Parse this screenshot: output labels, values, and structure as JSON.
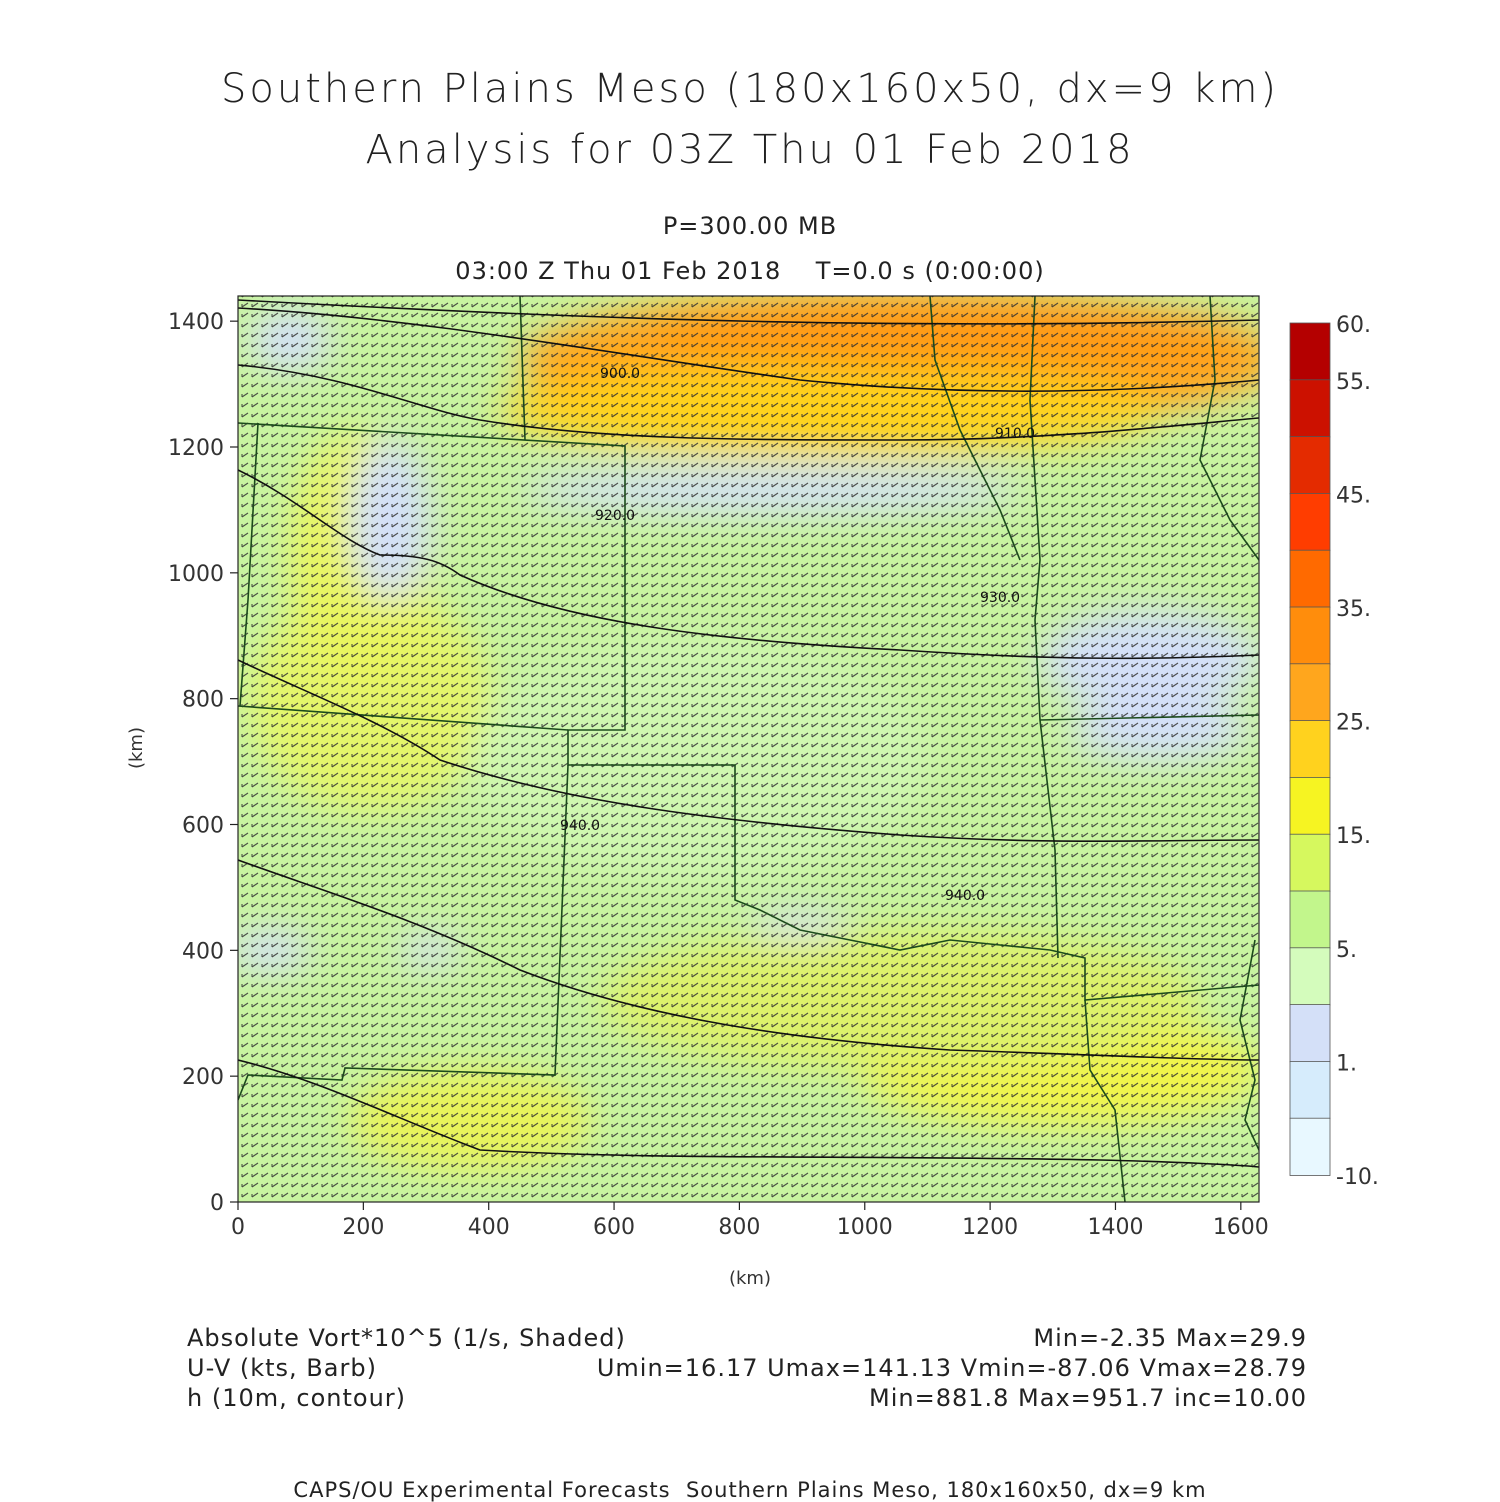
{
  "header": {
    "title": "Southern Plains Meso (180x160x50, dx=9 km)",
    "subtitle": "Analysis for 03Z Thu 01 Feb 2018",
    "level": "P=300.00 MB",
    "time": "03:00 Z Thu 01 Feb 2018    T=0.0 s (0:00:00)"
  },
  "axes": {
    "x_label": "(km)",
    "y_label": "(km)",
    "x_ticks": [
      "0",
      "200",
      "400",
      "600",
      "800",
      "1000",
      "1200",
      "1400",
      "1600"
    ],
    "y_ticks": [
      "0",
      "200",
      "400",
      "600",
      "800",
      "1000",
      "1200",
      "1400"
    ],
    "x_range_km": [
      0,
      1629
    ],
    "y_range_km": [
      0,
      1440
    ]
  },
  "colorbar": {
    "labels": [
      "60.",
      "55.",
      "45.",
      "35.",
      "25.",
      "15.",
      "5.",
      "1.",
      "-10."
    ],
    "colors": [
      "#b40000",
      "#cc1100",
      "#e42b00",
      "#ff3d00",
      "#ff6a00",
      "#ff8d0c",
      "#ffa61d",
      "#ffd21e",
      "#f6f422",
      "#d6f85e",
      "#c2f68c",
      "#d4fcbc",
      "#d4e0f8",
      "#d6ecfc",
      "#e8f8ff"
    ]
  },
  "contours": {
    "labels": [
      "900.0",
      "910.0",
      "920.0",
      "930.0",
      "940.0",
      "940.0"
    ]
  },
  "footer": {
    "field1": "Absolute Vort*10^5 (1/s, Shaded)",
    "field1_stats": "Min=-2.35 Max=29.9",
    "field2": "U-V (kts, Barb)",
    "field2_stats": "Umin=16.17 Umax=141.13 Vmin=-87.06 Vmax=28.79",
    "field3": "h (10m, contour)",
    "field3_stats": "Min=881.8 Max=951.7 inc=10.00",
    "credit": "CAPS/OU Experimental Forecasts  Southern Plains Meso, 180x160x50, dx=9 km"
  }
}
